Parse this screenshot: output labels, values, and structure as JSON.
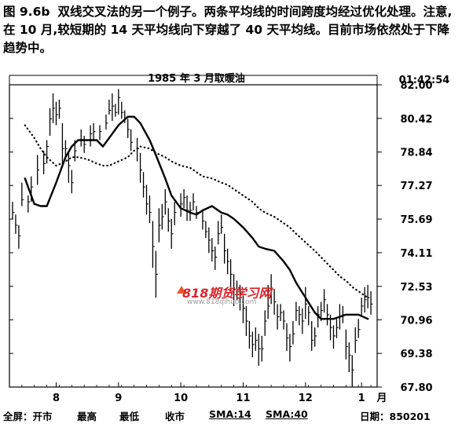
{
  "caption": {
    "label": "图 9.6b",
    "text": "双线交叉法的另一个例子。两条平均线的时间跨度均经过优化处理。注意,在 10 月,较短期的 14 天平均线向下穿越了 40 天平均线。目前市场依然处于下降趋势中。"
  },
  "header": {
    "title": "1985 年 3 月取暖油",
    "time": "01:42:54"
  },
  "watermark": {
    "main": "818期货学习网",
    "url": "www.818qihuo.com"
  },
  "footer": {
    "all_screen": "全屏：开市",
    "high": "最高",
    "low": "最低",
    "close": "收市",
    "sma14": "SMA:14",
    "sma40": "SMA:40",
    "date": "日期：850201"
  },
  "chart_data": {
    "type": "line",
    "title": "1985 年 3 月取暖油",
    "x_unit_label": "月",
    "x_ticks": [
      "8",
      "9",
      "10",
      "11",
      "12",
      "1"
    ],
    "y_ticks": [
      "82.00",
      "80.42",
      "78.84",
      "77.27",
      "75.69",
      "74.11",
      "72.53",
      "70.96",
      "69.38",
      "67.80"
    ],
    "ylim": [
      67.8,
      82.0
    ],
    "xlim": [
      0,
      118
    ],
    "x_tick_positions": [
      15,
      35,
      55,
      75,
      95,
      113
    ],
    "series": [
      {
        "name": "SMA:14",
        "style": "solid",
        "x": [
          5,
          8,
          10,
          12,
          15,
          18,
          20,
          22,
          25,
          28,
          30,
          32,
          35,
          38,
          40,
          42,
          45,
          47,
          50,
          52,
          55,
          58,
          60,
          62,
          65,
          68,
          70,
          72,
          75,
          78,
          80,
          82,
          85,
          88,
          90,
          92,
          95,
          98,
          100,
          102,
          104,
          106,
          108,
          110,
          112,
          115
        ],
        "values": [
          77.6,
          76.4,
          76.3,
          76.3,
          77.4,
          78.6,
          79.1,
          79.4,
          79.4,
          79.4,
          79.1,
          79.5,
          80.1,
          80.5,
          80.5,
          80.2,
          79.4,
          78.7,
          77.6,
          76.8,
          76.2,
          76.0,
          75.9,
          76.1,
          76.3,
          76.0,
          75.9,
          75.7,
          75.3,
          74.8,
          74.4,
          74.3,
          74.2,
          73.7,
          73.3,
          72.7,
          72.0,
          71.3,
          71.0,
          71.0,
          71.0,
          71.1,
          71.2,
          71.2,
          71.2,
          71.0
        ]
      },
      {
        "name": "SMA:40",
        "style": "dotted",
        "x": [
          5,
          8,
          10,
          12,
          15,
          18,
          20,
          22,
          25,
          28,
          30,
          32,
          35,
          38,
          40,
          42,
          45,
          47,
          50,
          52,
          55,
          58,
          60,
          62,
          65,
          68,
          70,
          72,
          75,
          78,
          80,
          82,
          85,
          88,
          90,
          92,
          95,
          98,
          100,
          102,
          104,
          106,
          108,
          110,
          112,
          115
        ],
        "values": [
          80.1,
          79.5,
          79.0,
          78.6,
          78.2,
          78.4,
          78.6,
          78.6,
          78.5,
          78.3,
          78.2,
          78.2,
          78.4,
          78.6,
          78.9,
          79.1,
          79.0,
          78.8,
          78.6,
          78.4,
          78.2,
          78.1,
          77.9,
          77.7,
          77.6,
          77.4,
          77.3,
          77.1,
          76.8,
          76.5,
          76.2,
          76.0,
          75.8,
          75.5,
          75.3,
          75.0,
          74.6,
          74.2,
          73.9,
          73.6,
          73.3,
          73.0,
          72.8,
          72.5,
          72.3,
          72.0
        ]
      }
    ],
    "bars_note": "daily high/low/close price bars",
    "price_bars": [
      [
        1,
        75.7,
        76.5,
        76.0
      ],
      [
        2,
        75.0,
        75.9,
        75.4
      ],
      [
        3,
        74.3,
        75.4,
        74.9
      ],
      [
        4,
        76.3,
        77.4,
        76.6
      ],
      [
        6,
        76.0,
        76.8,
        76.5
      ],
      [
        7,
        76.5,
        77.7,
        77.2
      ],
      [
        9,
        77.3,
        78.7,
        78.0
      ],
      [
        11,
        77.8,
        78.9,
        78.3
      ],
      [
        12,
        78.3,
        79.4,
        79.1
      ],
      [
        13,
        79.6,
        80.9,
        80.4
      ],
      [
        14,
        80.2,
        81.6,
        80.9
      ],
      [
        15,
        80.1,
        81.2,
        80.6
      ],
      [
        16,
        80.4,
        81.3,
        80.9
      ],
      [
        17,
        78.2,
        80.2,
        79.0
      ],
      [
        18,
        78.6,
        79.4,
        79.0
      ],
      [
        19,
        77.4,
        78.8,
        78.2
      ],
      [
        20,
        76.9,
        78.0,
        77.4
      ],
      [
        21,
        78.4,
        79.4,
        78.9
      ],
      [
        23,
        79.1,
        79.9,
        79.4
      ],
      [
        24,
        78.8,
        79.6,
        79.2
      ],
      [
        26,
        79.1,
        80.1,
        79.7
      ],
      [
        27,
        79.4,
        80.2,
        79.8
      ],
      [
        29,
        79.4,
        80.1,
        79.8
      ],
      [
        31,
        79.9,
        80.6,
        80.2
      ],
      [
        32,
        80.6,
        81.3,
        80.8
      ],
      [
        33,
        80.3,
        81.6,
        81.0
      ],
      [
        34,
        80.5,
        81.1,
        80.7
      ],
      [
        35,
        80.6,
        81.8,
        81.4
      ],
      [
        36,
        80.4,
        81.2,
        80.7
      ],
      [
        37,
        80.2,
        80.8,
        80.4
      ],
      [
        38,
        79.5,
        80.4,
        79.9
      ],
      [
        39,
        78.9,
        79.9,
        79.3
      ],
      [
        41,
        78.4,
        79.5,
        79.0
      ],
      [
        42,
        77.4,
        78.8,
        78.0
      ],
      [
        43,
        76.7,
        77.9,
        77.2
      ],
      [
        44,
        75.9,
        77.3,
        76.4
      ],
      [
        45,
        75.5,
        76.8,
        76.0
      ],
      [
        46,
        73.4,
        75.6,
        74.4
      ],
      [
        47,
        72.0,
        74.2,
        73.1
      ],
      [
        48,
        74.6,
        76.2,
        75.4
      ],
      [
        49,
        75.2,
        76.4,
        75.8
      ],
      [
        50,
        75.9,
        77.1,
        76.5
      ],
      [
        51,
        75.1,
        76.2,
        75.6
      ],
      [
        52,
        74.3,
        75.7,
        75.0
      ],
      [
        53,
        75.4,
        76.5,
        76.0
      ],
      [
        55,
        75.8,
        76.9,
        76.4
      ],
      [
        56,
        76.2,
        77.1,
        76.7
      ],
      [
        57,
        75.6,
        76.8,
        76.1
      ],
      [
        58,
        75.6,
        76.5,
        76.1
      ],
      [
        59,
        76.1,
        76.9,
        76.5
      ],
      [
        60,
        75.7,
        76.3,
        76.0
      ],
      [
        62,
        75.2,
        76.1,
        75.6
      ],
      [
        63,
        74.8,
        75.6,
        75.1
      ],
      [
        64,
        74.1,
        75.3,
        74.7
      ],
      [
        65,
        73.7,
        74.8,
        74.2
      ],
      [
        66,
        73.3,
        74.4,
        73.9
      ],
      [
        67,
        74.5,
        75.6,
        75.0
      ],
      [
        68,
        75.0,
        75.9,
        75.3
      ],
      [
        69,
        73.6,
        75.0,
        74.2
      ],
      [
        70,
        73.1,
        74.3,
        73.7
      ],
      [
        71,
        72.3,
        73.8,
        73.1
      ],
      [
        72,
        71.6,
        73.1,
        72.4
      ],
      [
        73,
        71.9,
        72.8,
        72.3
      ],
      [
        74,
        71.4,
        72.6,
        72.0
      ],
      [
        75,
        70.8,
        72.1,
        71.5
      ],
      [
        76,
        70.2,
        71.6,
        70.9
      ],
      [
        77,
        69.6,
        70.9,
        70.2
      ],
      [
        78,
        69.2,
        70.4,
        69.8
      ],
      [
        79,
        69.5,
        70.6,
        70.0
      ],
      [
        80,
        68.8,
        70.3,
        69.6
      ],
      [
        81,
        69.0,
        70.2,
        69.6
      ],
      [
        82,
        70.2,
        71.4,
        70.9
      ],
      [
        83,
        71.0,
        72.6,
        71.6
      ],
      [
        84,
        71.7,
        73.1,
        72.4
      ],
      [
        85,
        71.2,
        72.4,
        71.8
      ],
      [
        86,
        70.5,
        71.7,
        71.1
      ],
      [
        87,
        70.9,
        71.7,
        71.3
      ],
      [
        88,
        70.5,
        71.4,
        70.9
      ],
      [
        89,
        69.5,
        70.8,
        70.1
      ],
      [
        90,
        69.0,
        70.3,
        69.7
      ],
      [
        91,
        69.8,
        70.9,
        70.3
      ],
      [
        92,
        70.9,
        71.8,
        71.4
      ],
      [
        93,
        70.7,
        71.6,
        71.2
      ],
      [
        94,
        70.3,
        71.5,
        70.9
      ],
      [
        95,
        71.0,
        72.5,
        71.7
      ],
      [
        96,
        70.7,
        71.6,
        71.3
      ],
      [
        97,
        69.5,
        70.9,
        70.0
      ],
      [
        98,
        69.7,
        70.6,
        70.2
      ],
      [
        99,
        70.6,
        71.6,
        71.2
      ],
      [
        100,
        70.9,
        71.8,
        71.4
      ],
      [
        101,
        71.3,
        72.4,
        71.9
      ],
      [
        102,
        70.7,
        71.7,
        71.2
      ],
      [
        103,
        70.0,
        71.2,
        70.6
      ],
      [
        104,
        69.6,
        70.7,
        70.2
      ],
      [
        105,
        70.1,
        71.0,
        70.6
      ],
      [
        106,
        70.5,
        71.7,
        71.1
      ],
      [
        107,
        70.8,
        71.6,
        71.2
      ],
      [
        108,
        69.1,
        70.5,
        69.7
      ],
      [
        109,
        68.5,
        69.9,
        69.3
      ],
      [
        110,
        67.8,
        69.3,
        68.6
      ],
      [
        111,
        69.4,
        70.6,
        70.0
      ],
      [
        112,
        70.1,
        71.0,
        70.5
      ],
      [
        113,
        71.1,
        72.0,
        71.6
      ],
      [
        114,
        71.3,
        72.5,
        71.9
      ],
      [
        115,
        71.5,
        72.6,
        72.0
      ],
      [
        116,
        71.2,
        72.3,
        71.7
      ]
    ]
  }
}
